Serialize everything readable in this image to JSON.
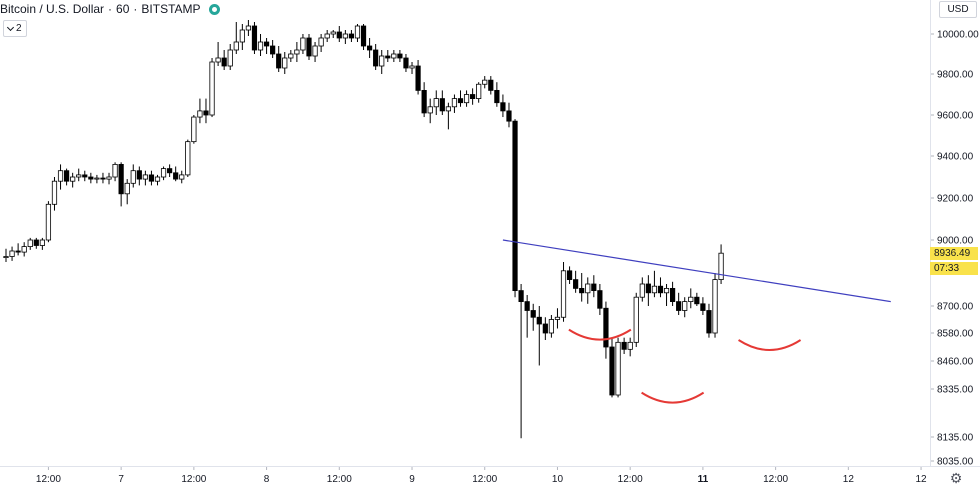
{
  "header": {
    "symbol": "Bitcoin / U.S. Dollar",
    "interval": "60",
    "exchange": "BITSTAMP",
    "separator": "·",
    "collapse_count": "2",
    "status_color": "#26a69a"
  },
  "price_axis": {
    "currency": "USD",
    "last_price": "8936.49",
    "countdown": "07:33",
    "tag_color": "#f9e24b"
  },
  "chart_data": {
    "type": "candlestick",
    "title": "",
    "xlabel": "",
    "ylabel": "",
    "ylim": [
      8035,
      10073
    ],
    "y_ticks": [
      {
        "label": "10000.00",
        "value": 10000
      },
      {
        "label": "9800.00",
        "value": 9800
      },
      {
        "label": "9600.00",
        "value": 9600
      },
      {
        "label": "9400.00",
        "value": 9400
      },
      {
        "label": "9200.00",
        "value": 9200
      },
      {
        "label": "9000.00",
        "value": 9000
      },
      {
        "label": "8700.00",
        "value": 8700
      },
      {
        "label": "8580.00",
        "value": 8580
      },
      {
        "label": "8460.00",
        "value": 8460
      },
      {
        "label": "8335.00",
        "value": 8335
      },
      {
        "label": "8135.00",
        "value": 8135
      },
      {
        "label": "8035.00",
        "value": 8035
      }
    ],
    "x_ticks": [
      {
        "label": "12:00",
        "bar": 7
      },
      {
        "label": "7",
        "bar": 19
      },
      {
        "label": "12:00",
        "bar": 31
      },
      {
        "label": "8",
        "bar": 43
      },
      {
        "label": "12:00",
        "bar": 55
      },
      {
        "label": "9",
        "bar": 67
      },
      {
        "label": "12:00",
        "bar": 79
      },
      {
        "label": "10",
        "bar": 91
      },
      {
        "label": "12:00",
        "bar": 103
      },
      {
        "label": "11",
        "bar": 115
      },
      {
        "label": "12:00",
        "bar": 127
      },
      {
        "label": "12",
        "bar": 139
      },
      {
        "label": "12",
        "bar": 151
      }
    ],
    "up_color": "#ffffff",
    "down_color": "#000000",
    "candles": [
      [
        8920,
        8960,
        8900,
        8925
      ],
      [
        8925,
        8970,
        8905,
        8950
      ],
      [
        8950,
        8985,
        8930,
        8945
      ],
      [
        8945,
        8990,
        8925,
        8970
      ],
      [
        8970,
        9010,
        8955,
        9000
      ],
      [
        9000,
        9010,
        8960,
        8975
      ],
      [
        8975,
        9010,
        8955,
        9000
      ],
      [
        9000,
        9185,
        8990,
        9170
      ],
      [
        9170,
        9300,
        9140,
        9280
      ],
      [
        9280,
        9360,
        9240,
        9330
      ],
      [
        9330,
        9340,
        9260,
        9280
      ],
      [
        9280,
        9320,
        9250,
        9300
      ],
      [
        9300,
        9340,
        9280,
        9310
      ],
      [
        9310,
        9330,
        9280,
        9300
      ],
      [
        9300,
        9320,
        9270,
        9290
      ],
      [
        9290,
        9310,
        9270,
        9295
      ],
      [
        9295,
        9320,
        9270,
        9290
      ],
      [
        9290,
        9320,
        9265,
        9300
      ],
      [
        9300,
        9370,
        9280,
        9360
      ],
      [
        9360,
        9370,
        9160,
        9220
      ],
      [
        9220,
        9290,
        9170,
        9270
      ],
      [
        9270,
        9360,
        9250,
        9330
      ],
      [
        9330,
        9350,
        9260,
        9290
      ],
      [
        9290,
        9330,
        9260,
        9310
      ],
      [
        9310,
        9330,
        9260,
        9280
      ],
      [
        9280,
        9310,
        9260,
        9300
      ],
      [
        9300,
        9350,
        9285,
        9340
      ],
      [
        9340,
        9360,
        9300,
        9320
      ],
      [
        9320,
        9350,
        9280,
        9290
      ],
      [
        9290,
        9330,
        9270,
        9310
      ],
      [
        9310,
        9480,
        9300,
        9470
      ],
      [
        9470,
        9600,
        9460,
        9590
      ],
      [
        9590,
        9680,
        9560,
        9620
      ],
      [
        9620,
        9680,
        9560,
        9600
      ],
      [
        9600,
        9880,
        9590,
        9860
      ],
      [
        9860,
        9960,
        9840,
        9880
      ],
      [
        9880,
        9920,
        9820,
        9840
      ],
      [
        9840,
        9950,
        9820,
        9920
      ],
      [
        9920,
        10060,
        9900,
        9960
      ],
      [
        9960,
        10050,
        9920,
        10020
      ],
      [
        10020,
        10070,
        9990,
        10040
      ],
      [
        10040,
        10060,
        9900,
        9920
      ],
      [
        9920,
        10000,
        9890,
        9960
      ],
      [
        9960,
        9980,
        9900,
        9940
      ],
      [
        9940,
        9970,
        9880,
        9900
      ],
      [
        9900,
        9940,
        9810,
        9830
      ],
      [
        9830,
        9910,
        9800,
        9880
      ],
      [
        9880,
        9920,
        9860,
        9900
      ],
      [
        9900,
        9960,
        9860,
        9920
      ],
      [
        9920,
        10000,
        9900,
        9980
      ],
      [
        9980,
        10000,
        9870,
        9890
      ],
      [
        9890,
        9960,
        9860,
        9940
      ],
      [
        9940,
        10000,
        9910,
        9980
      ],
      [
        9980,
        10020,
        9960,
        10000
      ],
      [
        10000,
        10020,
        9980,
        10010
      ],
      [
        10010,
        10040,
        9960,
        9980
      ],
      [
        9980,
        10020,
        9950,
        10000
      ],
      [
        10000,
        10020,
        9960,
        9980
      ],
      [
        9980,
        10050,
        9960,
        10040
      ],
      [
        10040,
        10050,
        9920,
        9940
      ],
      [
        9940,
        9980,
        9880,
        9920
      ],
      [
        9920,
        9950,
        9820,
        9840
      ],
      [
        9840,
        9920,
        9800,
        9890
      ],
      [
        9890,
        9920,
        9860,
        9880
      ],
      [
        9880,
        9920,
        9860,
        9900
      ],
      [
        9900,
        9920,
        9860,
        9880
      ],
      [
        9880,
        9900,
        9810,
        9830
      ],
      [
        9830,
        9860,
        9800,
        9840
      ],
      [
        9840,
        9870,
        9700,
        9720
      ],
      [
        9720,
        9760,
        9590,
        9610
      ],
      [
        9610,
        9680,
        9560,
        9640
      ],
      [
        9640,
        9720,
        9600,
        9680
      ],
      [
        9680,
        9720,
        9600,
        9620
      ],
      [
        9620,
        9660,
        9530,
        9640
      ],
      [
        9640,
        9700,
        9610,
        9680
      ],
      [
        9680,
        9720,
        9640,
        9660
      ],
      [
        9660,
        9720,
        9640,
        9700
      ],
      [
        9700,
        9730,
        9650,
        9680
      ],
      [
        9680,
        9760,
        9660,
        9750
      ],
      [
        9750,
        9790,
        9730,
        9770
      ],
      [
        9770,
        9790,
        9700,
        9720
      ],
      [
        9720,
        9760,
        9640,
        9660
      ],
      [
        9660,
        9700,
        9590,
        9620
      ],
      [
        9620,
        9660,
        9540,
        9570
      ],
      [
        9570,
        9580,
        8740,
        8770
      ],
      [
        8770,
        8800,
        8130,
        8720
      ],
      [
        8720,
        8750,
        8560,
        8680
      ],
      [
        8680,
        8710,
        8590,
        8650
      ],
      [
        8650,
        8700,
        8440,
        8620
      ],
      [
        8620,
        8650,
        8550,
        8580
      ],
      [
        8580,
        8660,
        8560,
        8640
      ],
      [
        8640,
        8690,
        8600,
        8650
      ],
      [
        8650,
        8900,
        8630,
        8860
      ],
      [
        8860,
        8880,
        8800,
        8820
      ],
      [
        8820,
        8860,
        8760,
        8780
      ],
      [
        8780,
        8850,
        8720,
        8760
      ],
      [
        8760,
        8830,
        8710,
        8800
      ],
      [
        8800,
        8840,
        8740,
        8770
      ],
      [
        8770,
        8800,
        8660,
        8690
      ],
      [
        8690,
        8720,
        8470,
        8520
      ],
      [
        8520,
        8560,
        8300,
        8310
      ],
      [
        8310,
        8560,
        8300,
        8540
      ],
      [
        8540,
        8560,
        8490,
        8510
      ],
      [
        8510,
        8560,
        8480,
        8540
      ],
      [
        8540,
        8760,
        8520,
        8740
      ],
      [
        8740,
        8830,
        8720,
        8800
      ],
      [
        8800,
        8840,
        8700,
        8760
      ],
      [
        8760,
        8860,
        8740,
        8790
      ],
      [
        8790,
        8830,
        8740,
        8760
      ],
      [
        8760,
        8800,
        8700,
        8780
      ],
      [
        8780,
        8810,
        8700,
        8720
      ],
      [
        8720,
        8760,
        8660,
        8680
      ],
      [
        8680,
        8740,
        8650,
        8720
      ],
      [
        8720,
        8780,
        8690,
        8740
      ],
      [
        8740,
        8760,
        8700,
        8710
      ],
      [
        8710,
        8740,
        8660,
        8680
      ],
      [
        8680,
        8710,
        8560,
        8580
      ],
      [
        8580,
        8850,
        8560,
        8820
      ],
      [
        8820,
        8980,
        8800,
        8940
      ]
    ],
    "trendline": {
      "from": {
        "bar": 82,
        "price": 9000
      },
      "to": {
        "bar": 146,
        "price": 8720
      },
      "color": "#3f3fbf"
    },
    "annotations": [
      {
        "type": "arc",
        "center_bar": 98,
        "center_price": 8595,
        "color": "#e53935"
      },
      {
        "type": "arc",
        "center_bar": 110,
        "center_price": 8320,
        "color": "#e53935"
      },
      {
        "type": "arc",
        "center_bar": 126,
        "center_price": 8550,
        "color": "#e53935"
      }
    ]
  }
}
